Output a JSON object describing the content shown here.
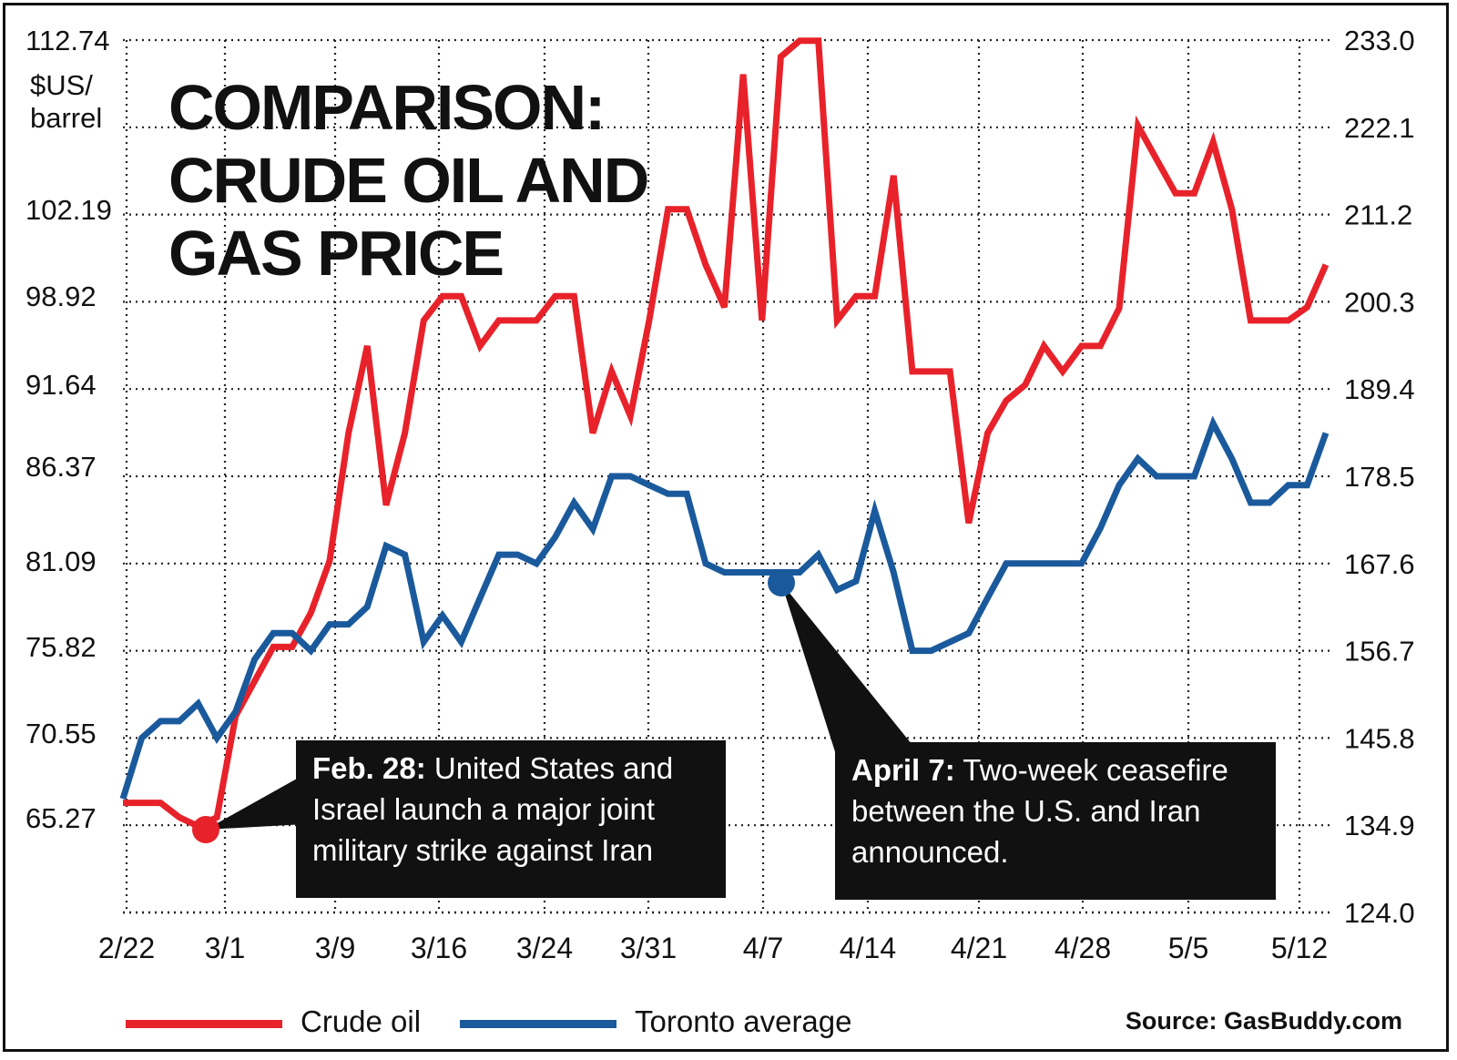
{
  "title": "COMPARISON:\nCRUDE OIL AND\nGAS PRICE",
  "left_axis_unit": "$US/\nbarrel",
  "source": "Source: GasBuddy.com",
  "colors": {
    "crude": "#e8222a",
    "toronto": "#1a5a9c",
    "callout_bg": "#111111"
  },
  "callouts": {
    "feb": {
      "bold": "Feb. 28:",
      "text": " United States and Israel launch a major joint military strike against Iran"
    },
    "apr": {
      "bold": "April 7:",
      "text": " Two-week ceasefire between the U.S. and Iran announced."
    }
  },
  "chart_data": {
    "type": "line",
    "x_ticks": [
      "2/22",
      "3/1",
      "3/9",
      "3/16",
      "3/24",
      "3/31",
      "4/7",
      "4/14",
      "4/21",
      "4/28",
      "5/5",
      "5/12"
    ],
    "left_ticks": [
      "112.74",
      "102.19",
      "98.92",
      "91.64",
      "86.37",
      "81.09",
      "75.82",
      "70.55",
      "65.27"
    ],
    "right_ticks": [
      "233.0",
      "222.1",
      "211.2",
      "200.3",
      "189.4",
      "178.5",
      "167.6",
      "156.7",
      "145.8",
      "134.9",
      "124.0"
    ],
    "left_ylim": [
      60,
      112.74
    ],
    "right_ylim": [
      124.0,
      233.0
    ],
    "grid": true,
    "legend_position": "bottom",
    "series": [
      {
        "name": "Crude oil",
        "axis": "left",
        "x_start": 0,
        "x_step": 1,
        "values": [
          66.2,
          66.2,
          66.2,
          65.3,
          64.8,
          65.3,
          71.6,
          73.7,
          75.8,
          75.8,
          77.9,
          81.1,
          88.5,
          94.8,
          84.2,
          88.5,
          96.9,
          98.9,
          98.9,
          94.8,
          96.9,
          96.9,
          96.9,
          98.9,
          98.9,
          88.5,
          92.7,
          89.6,
          96.9,
          102.2,
          102.2,
          100.1,
          98.0,
          110.6,
          96.9,
          111.7,
          112.7,
          112.7,
          96.9,
          98.9,
          98.9,
          104.3,
          92.7,
          92.7,
          92.7,
          83.2,
          88.5,
          90.6,
          91.6,
          94.8,
          92.7,
          94.8,
          94.8,
          97.9,
          107.4,
          105.3,
          103.2,
          103.2,
          106.4,
          102.2,
          96.9,
          96.9,
          96.9,
          98.0,
          100.1
        ]
      },
      {
        "name": "Toronto average",
        "axis": "right",
        "x_start": 0,
        "x_step": 1,
        "values": [
          138.2,
          145.8,
          147.9,
          147.9,
          150.1,
          145.8,
          149.1,
          155.6,
          158.9,
          158.9,
          156.7,
          160.0,
          160.0,
          162.2,
          169.8,
          168.7,
          157.8,
          161.1,
          157.8,
          163.3,
          168.7,
          168.7,
          167.6,
          170.9,
          175.2,
          171.9,
          178.5,
          178.5,
          177.4,
          176.3,
          176.3,
          167.6,
          166.5,
          166.5,
          166.5,
          166.5,
          166.5,
          168.7,
          164.3,
          165.4,
          174.2,
          166.5,
          156.7,
          156.7,
          157.8,
          158.9,
          163.3,
          167.6,
          167.6,
          167.6,
          167.6,
          167.6,
          172.0,
          177.4,
          180.7,
          178.5,
          178.5,
          178.5,
          185.1,
          180.7,
          175.2,
          175.2,
          177.4,
          177.4,
          183.9
        ]
      }
    ]
  }
}
